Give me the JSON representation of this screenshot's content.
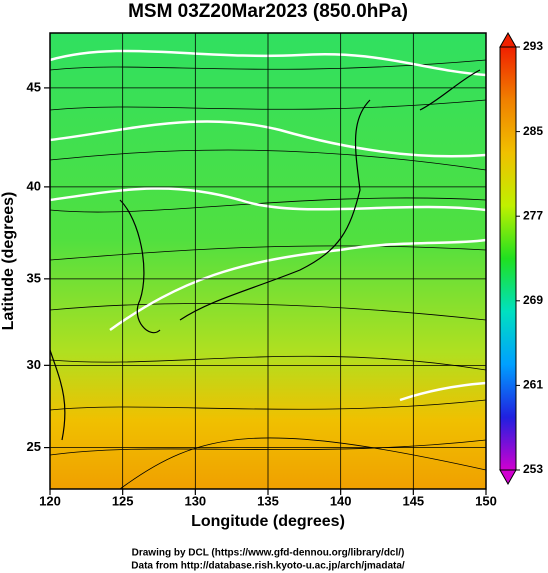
{
  "chart_data": {
    "type": "map",
    "title": "MSM 03Z20Mar2023 (850.0hPa)",
    "x_label": "Longitude (degrees)",
    "y_label": "Latitude  (degrees)",
    "projection": "mercator",
    "xlim": [
      120,
      150
    ],
    "xticks": [
      120,
      125,
      130,
      135,
      140,
      145,
      150
    ],
    "ylim": [
      22.4,
      47.6
    ],
    "yticks": [
      25,
      30,
      35,
      40,
      45
    ],
    "grid": true,
    "colorbar": {
      "lim": [
        253,
        293
      ],
      "ticks": [
        253,
        261,
        269,
        277,
        285,
        293
      ],
      "colors": [
        "#d000d0",
        "#2020e0",
        "#00a0ff",
        "#00e0c0",
        "#20e020",
        "#c0f000",
        "#f0c000",
        "#f08000",
        "#f02000"
      ]
    },
    "footer": [
      "Drawing by DCL (https://www.gfd-dennou.org/library/dcl/)",
      "Data from http://database.rish.kyoto-u.ac.jp/arch/jmadata/"
    ]
  }
}
